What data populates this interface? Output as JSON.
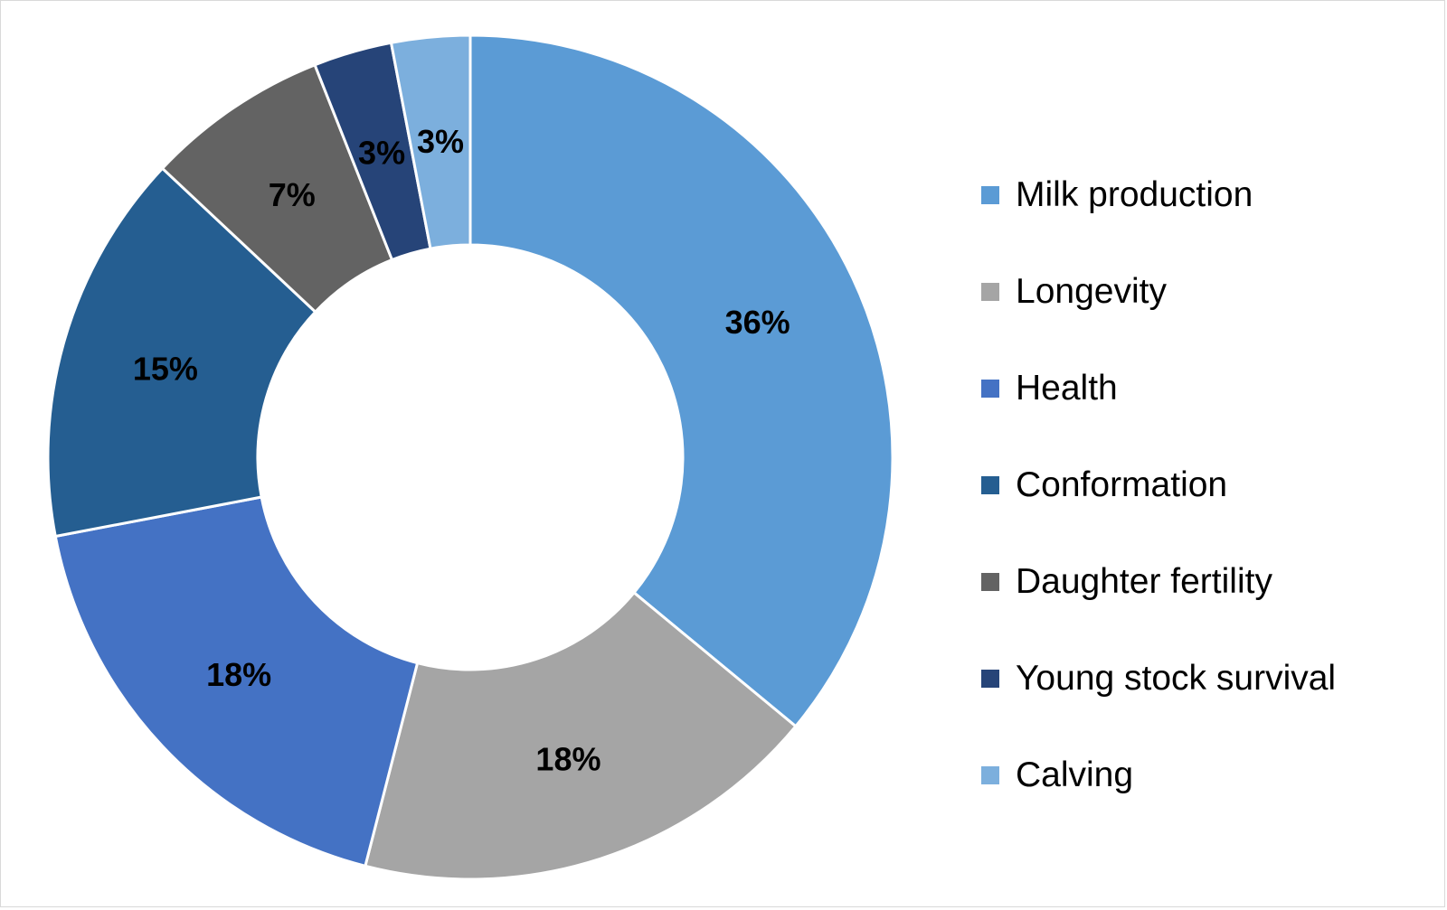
{
  "chart_data": {
    "type": "pie",
    "variant": "donut",
    "title": "",
    "categories": [
      "Milk production",
      "Longevity",
      "Health",
      "Conformation",
      "Daughter fertility",
      "Young stock survival",
      "Calving"
    ],
    "values": [
      36,
      18,
      18,
      15,
      7,
      3,
      3
    ],
    "labels": [
      "36%",
      "18%",
      "18%",
      "15%",
      "7%",
      "3%",
      "3%"
    ],
    "colors": [
      "#5b9bd5",
      "#a5a5a5",
      "#4472c4",
      "#255e91",
      "#636363",
      "#264478",
      "#7cafdd"
    ],
    "legend_position": "right"
  }
}
